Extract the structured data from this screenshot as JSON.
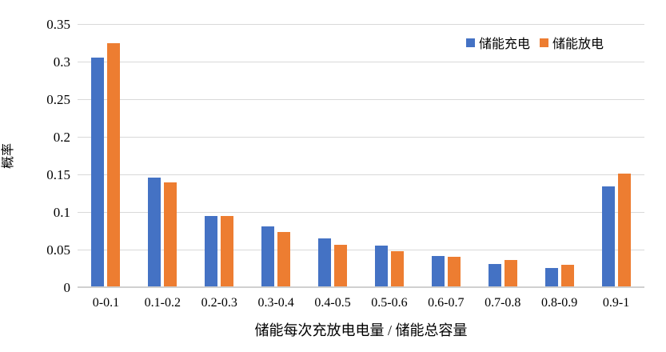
{
  "chart_data": {
    "type": "bar",
    "title": "",
    "categories": [
      "0-0.1",
      "0.1-0.2",
      "0.2-0.3",
      "0.3-0.4",
      "0.4-0.5",
      "0.5-0.6",
      "0.6-0.7",
      "0.7-0.8",
      "0.8-0.9",
      "0.9-1"
    ],
    "series": [
      {
        "name": "储能充电",
        "color": "#4472C4",
        "values": [
          0.305,
          0.146,
          0.095,
          0.081,
          0.065,
          0.055,
          0.041,
          0.031,
          0.026,
          0.134
        ]
      },
      {
        "name": "储能放电",
        "color": "#ED7D31",
        "values": [
          0.325,
          0.139,
          0.095,
          0.073,
          0.056,
          0.048,
          0.04,
          0.036,
          0.03,
          0.151
        ]
      }
    ],
    "xlabel": "储能每次充放电电量 / 储能总容量",
    "ylabel": "概率",
    "ylim": [
      0,
      0.35
    ],
    "ytick_step": 0.05,
    "ytick_labels": [
      "0",
      "0.05",
      "0.1",
      "0.15",
      "0.2",
      "0.25",
      "0.3",
      "0.35"
    ],
    "grid": true,
    "gridline_color": "#d9d9d9",
    "legend_position": "top-right"
  }
}
